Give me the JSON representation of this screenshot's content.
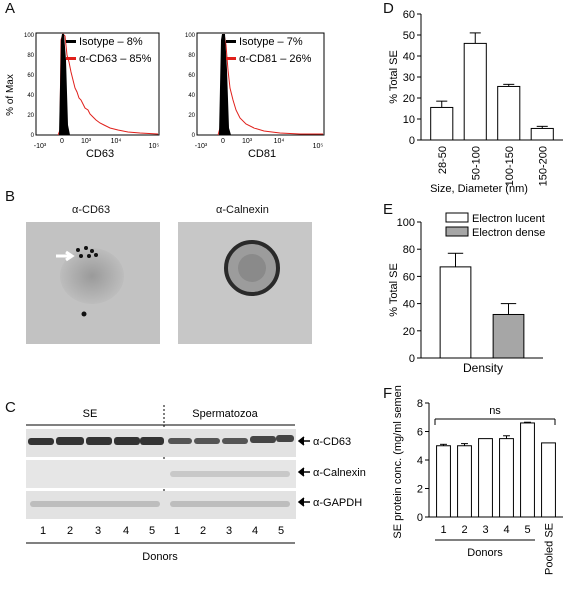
{
  "panels": {
    "A": "A",
    "B": "B",
    "C": "C",
    "D": "D",
    "E": "E",
    "F": "F"
  },
  "flow": {
    "ylabel": "% of Max",
    "left": {
      "xlabel": "CD63",
      "legend": [
        {
          "label": "Isotype – 8%",
          "color": "#000000"
        },
        {
          "label": "α-CD63 – 85%",
          "color": "#e0201b"
        }
      ],
      "xticks": [
        "-10³",
        "0",
        "10³",
        "10⁴",
        "10⁵"
      ]
    },
    "right": {
      "xlabel": "CD81",
      "legend": [
        {
          "label": "Isotype – 7%",
          "color": "#000000"
        },
        {
          "label": "α-CD81 – 26%",
          "color": "#e0201b"
        }
      ],
      "xticks": [
        "-10³",
        "0",
        "10³",
        "10⁴",
        "10⁵"
      ]
    },
    "yticks": [
      "0",
      "20",
      "40",
      "60",
      "80",
      "100"
    ]
  },
  "em": {
    "left_title": "α-CD63",
    "right_title": "α-Calnexin"
  },
  "western": {
    "groups": [
      "SE",
      "Spermatozoa"
    ],
    "rows": [
      "α-CD63",
      "α-Calnexin",
      "α-GAPDH"
    ],
    "lanes": [
      "1",
      "2",
      "3",
      "4",
      "5",
      "1",
      "2",
      "3",
      "4",
      "5"
    ],
    "footer": "Donors"
  },
  "chart_data": [
    {
      "panel": "D",
      "type": "bar",
      "categories": [
        "28-50",
        "50-100",
        "100-150",
        "150-200"
      ],
      "values": [
        15.5,
        46,
        25.5,
        5.5
      ],
      "errors": [
        3,
        5,
        1,
        1
      ],
      "ylabel": "% Total SE",
      "xlabel": "Size, Diameter (nm)",
      "ylim": [
        0,
        60
      ],
      "yticks": [
        0,
        10,
        20,
        30,
        40,
        50,
        60
      ]
    },
    {
      "panel": "E",
      "type": "bar",
      "categories": [
        "Electron lucent",
        "Electron dense"
      ],
      "values": [
        67,
        32
      ],
      "errors": [
        10,
        8
      ],
      "colors": [
        "#ffffff",
        "#a6a6a6"
      ],
      "ylabel": "% Total SE",
      "xlabel": "Density",
      "ylim": [
        0,
        100
      ],
      "yticks": [
        0,
        20,
        40,
        60,
        80,
        100
      ],
      "legend": [
        "Electron lucent",
        "Electron dense"
      ]
    },
    {
      "panel": "F",
      "type": "bar",
      "categories": [
        "1",
        "2",
        "3",
        "4",
        "5",
        "Pooled SE"
      ],
      "values": [
        5.0,
        5.0,
        5.5,
        5.5,
        6.6,
        5.2
      ],
      "errors": [
        0.1,
        0.15,
        0,
        0.2,
        0.05,
        0
      ],
      "ylabel": "SE protein conc. (mg/ml semen)",
      "xlabel": "Donors",
      "ylim": [
        0,
        8
      ],
      "yticks": [
        0,
        2,
        4,
        6,
        8
      ],
      "annotation": "ns"
    }
  ]
}
